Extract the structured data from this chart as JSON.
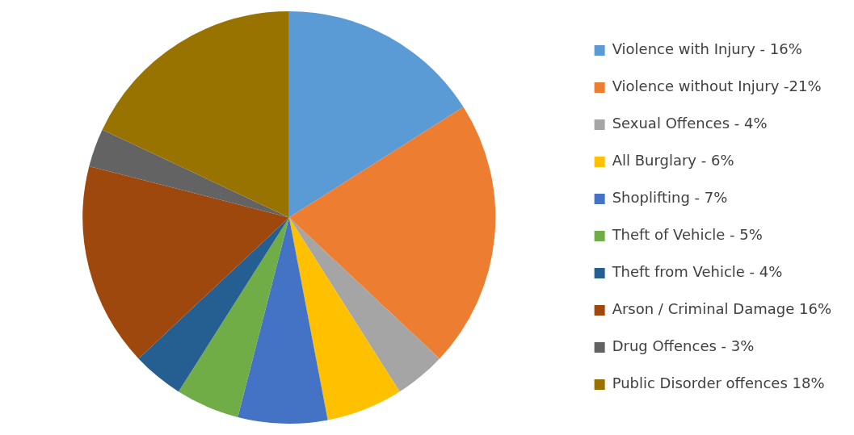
{
  "chart_data": {
    "type": "pie",
    "categories": [
      "Violence with Injury - 16%",
      "Violence without Injury -21%",
      "Sexual Offences - 4%",
      "All Burglary - 6%",
      "Shoplifting - 7%",
      "Theft of Vehicle - 5%",
      "Theft from Vehicle - 4%",
      "Arson / Criminal Damage 16%",
      "Drug Offences - 3%",
      "Public Disorder offences 18%"
    ],
    "values": [
      16,
      21,
      4,
      6,
      7,
      5,
      4,
      16,
      3,
      18
    ],
    "colors": [
      "#5b9bd5",
      "#ed7d31",
      "#a5a5a5",
      "#ffc000",
      "#4472c4",
      "#70ad47",
      "#255e91",
      "#9e480e",
      "#636363",
      "#997300"
    ],
    "legend": "right"
  }
}
